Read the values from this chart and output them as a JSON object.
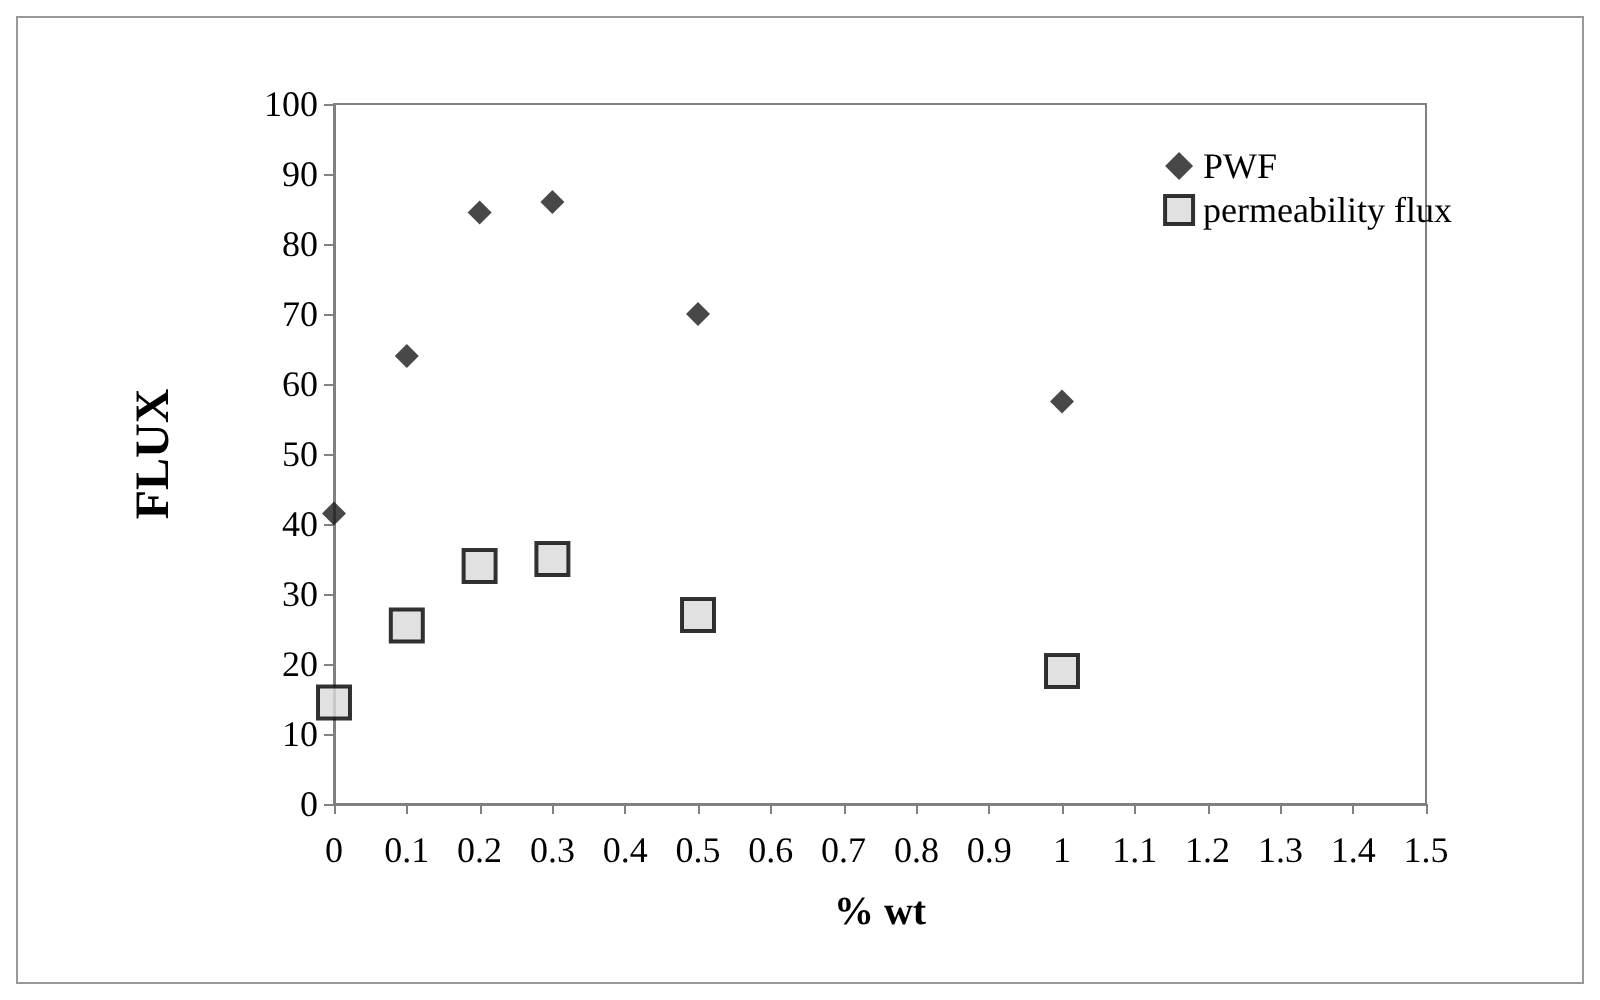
{
  "chart_data": {
    "type": "scatter",
    "xlabel": "% wt",
    "ylabel": "FLUX",
    "x": [
      0,
      0.1,
      0.2,
      0.3,
      0.5,
      1
    ],
    "series": [
      {
        "name": "PWF",
        "color": "#1a1a1a",
        "marker": "diamond",
        "values": [
          41.5,
          64,
          84.5,
          86,
          70,
          57.5
        ]
      },
      {
        "name": "permeability flux",
        "color": "#d9d9d9",
        "marker": "square",
        "values": [
          14.5,
          25.5,
          34,
          35,
          27,
          19
        ]
      }
    ],
    "xlim": [
      0,
      1.5
    ],
    "xticks": [
      0,
      0.1,
      0.2,
      0.3,
      0.4,
      0.5,
      0.6,
      0.7,
      0.8,
      0.9,
      1,
      1.1,
      1.2,
      1.3,
      1.4,
      1.5
    ],
    "ylim": [
      0,
      100
    ],
    "yticks": [
      0,
      10,
      20,
      30,
      40,
      50,
      60,
      70,
      80,
      90,
      100
    ],
    "grid": false,
    "legend": "top right"
  }
}
